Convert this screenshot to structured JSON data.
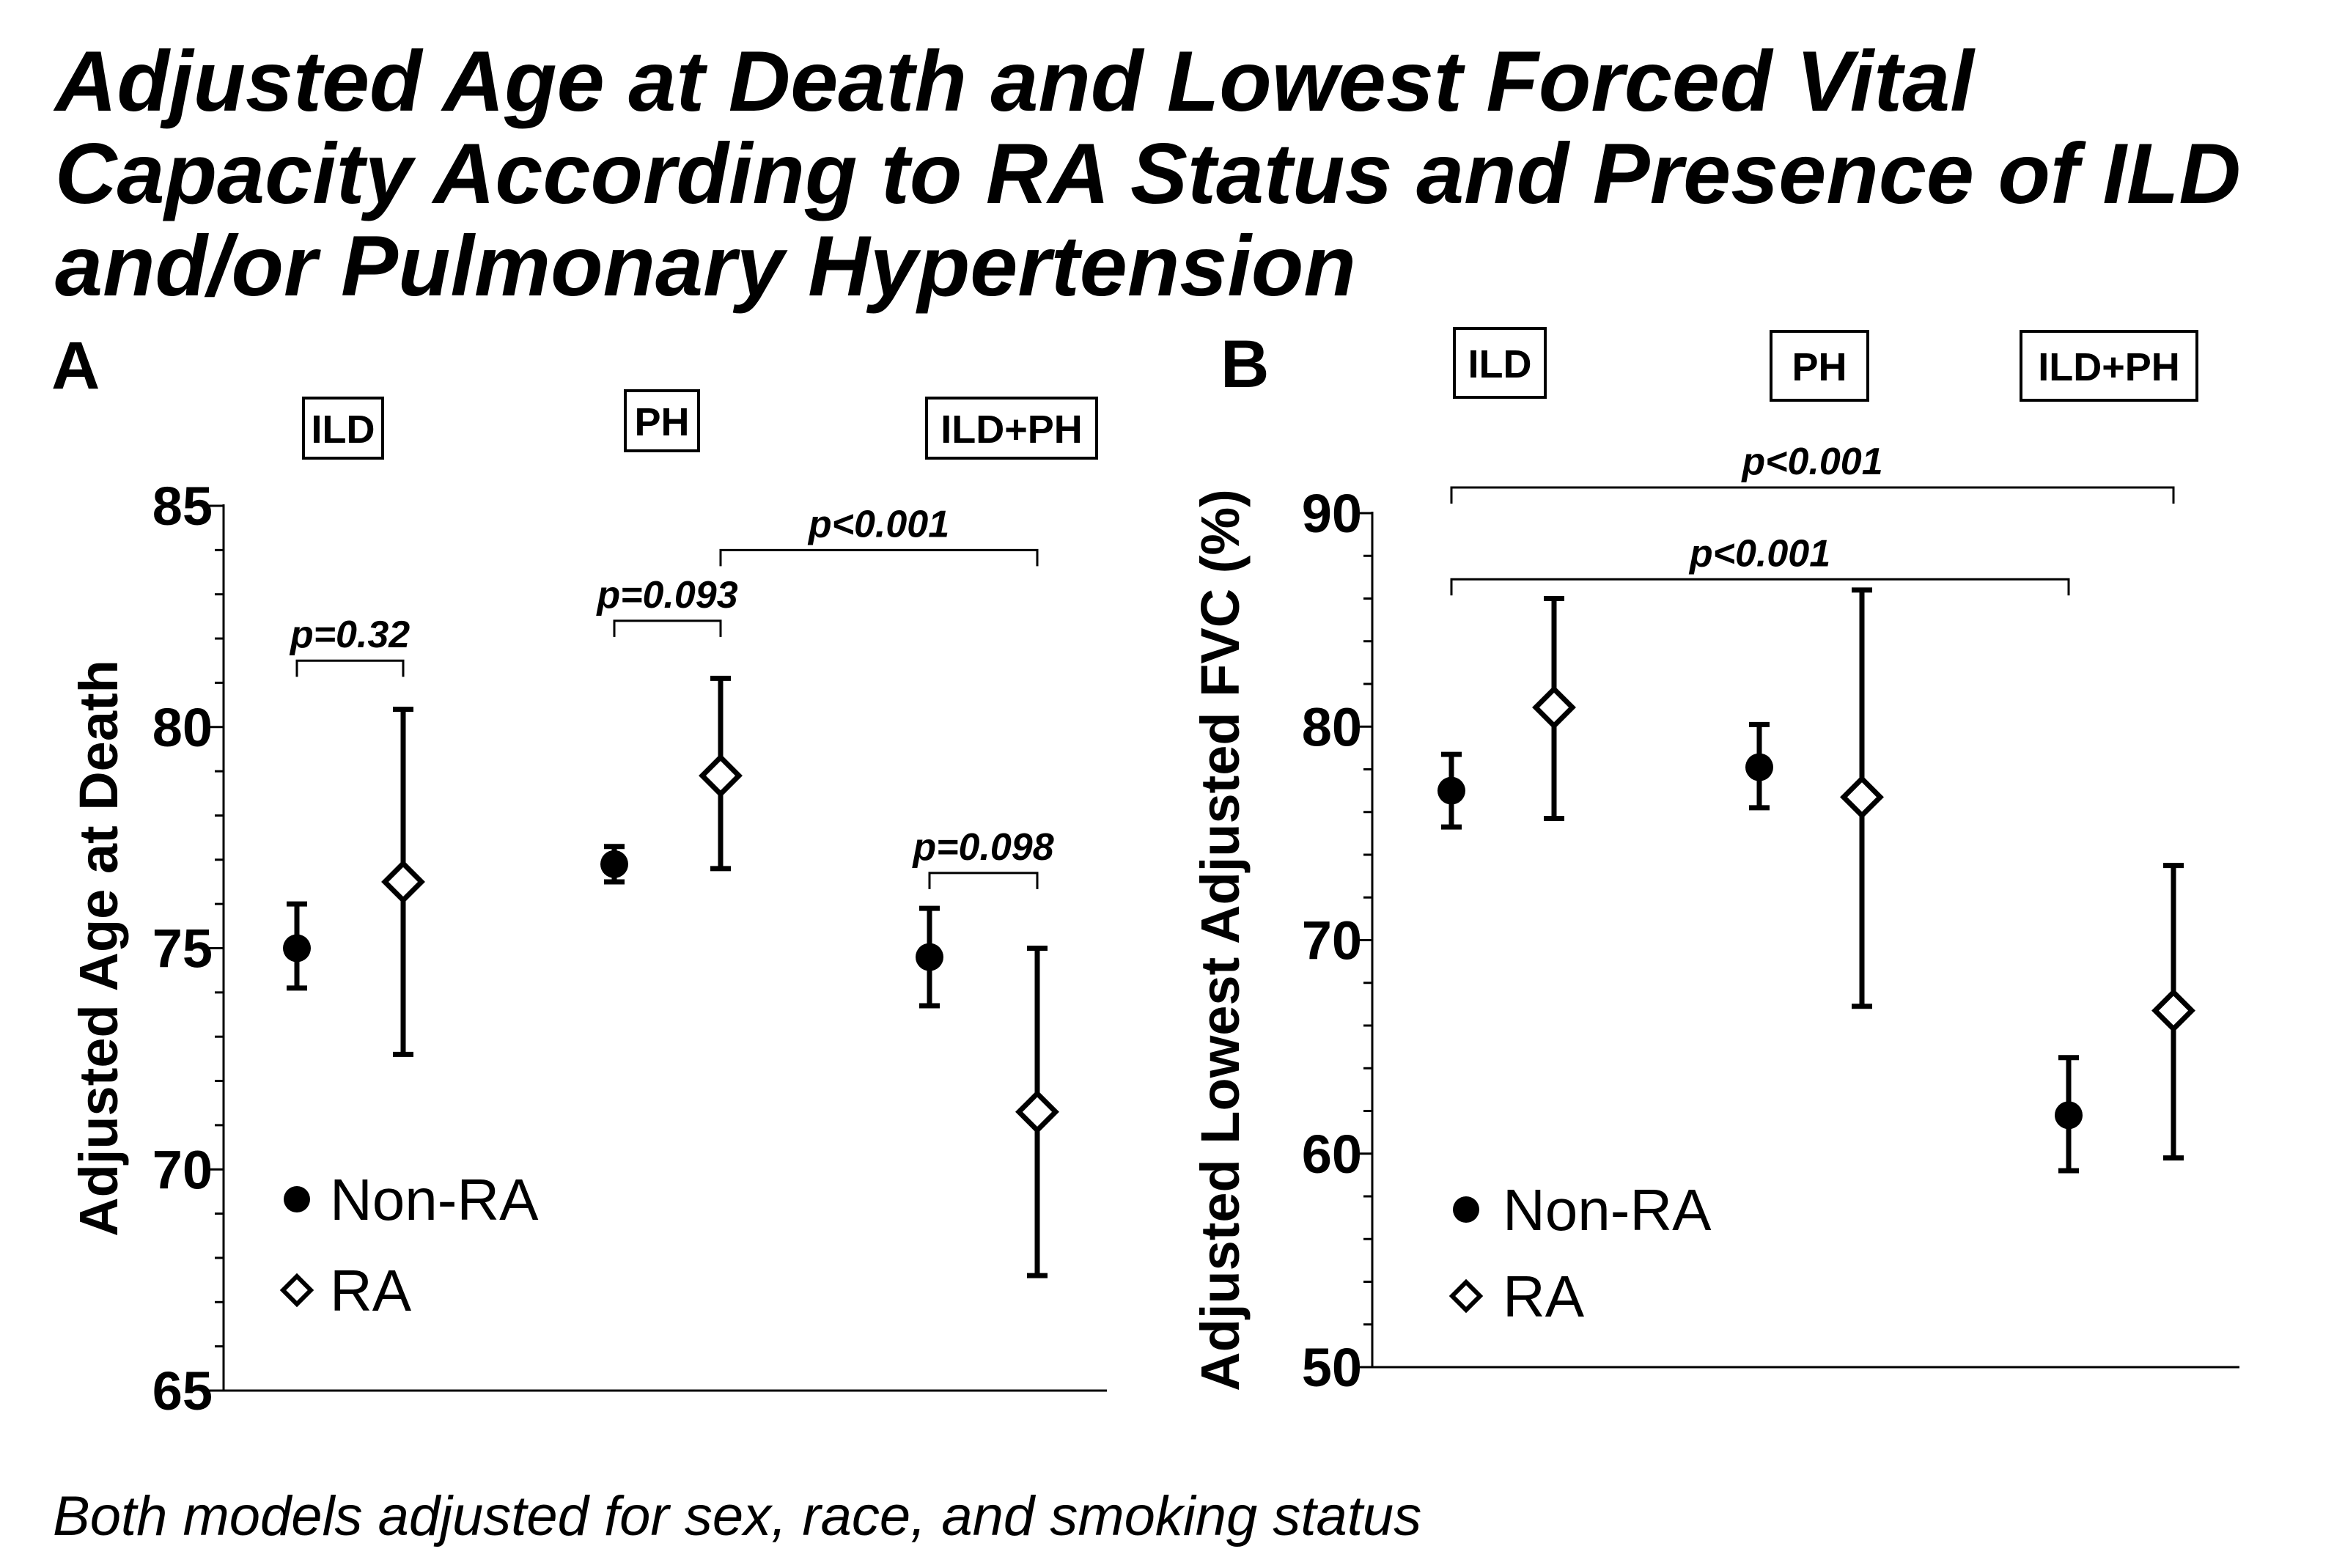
{
  "figure": {
    "title_lines": [
      "Adjusted Age at Death and Lowest Forced Vital",
      "Capacity According to RA Status and Presence of ILD",
      "and/or Pulmonary Hypertension"
    ],
    "footnote": "Both models adjusted for sex, race, and smoking status"
  },
  "chart_data": [
    {
      "type": "scatter",
      "panel_label": "A",
      "ylabel": "Adjusted Age at Death",
      "ylim": [
        65,
        85
      ],
      "yticks": [
        65,
        70,
        75,
        80,
        85
      ],
      "groups": [
        "ILD",
        "PH",
        "ILD+PH"
      ],
      "legend": {
        "placement": "bottom-left",
        "entries": [
          "Non-RA",
          "RA"
        ]
      },
      "series": [
        {
          "name": "Non-RA",
          "marker": "filled-circle",
          "values": [
            75.0,
            76.9,
            74.8
          ],
          "lower": [
            74.1,
            76.5,
            73.7
          ],
          "upper": [
            76.0,
            77.3,
            75.9
          ]
        },
        {
          "name": "RA",
          "marker": "open-diamond",
          "values": [
            76.5,
            78.9,
            71.3
          ],
          "lower": [
            72.6,
            76.8,
            67.6
          ],
          "upper": [
            80.4,
            81.1,
            75.0
          ]
        }
      ],
      "annotations": [
        {
          "text": "p=0.32",
          "from": [
            0,
            "Non-RA"
          ],
          "to": [
            0,
            "RA"
          ],
          "bracket_y": 81.5
        },
        {
          "text": "p=0.093",
          "from": [
            1,
            "Non-RA"
          ],
          "to": [
            1,
            "RA"
          ],
          "bracket_y": 82.4
        },
        {
          "text": "p<0.001",
          "from": [
            1,
            "RA"
          ],
          "to": [
            2,
            "RA"
          ],
          "bracket_y": 84.0
        },
        {
          "text": "p=0.098",
          "from": [
            2,
            "Non-RA"
          ],
          "to": [
            2,
            "RA"
          ],
          "bracket_y": 76.7
        }
      ]
    },
    {
      "type": "scatter",
      "panel_label": "B",
      "ylabel": "Adjusted Lowest Adjusted FVC (%)",
      "ylim": [
        50,
        90
      ],
      "yticks": [
        50,
        60,
        70,
        80,
        90
      ],
      "groups": [
        "ILD",
        "PH",
        "ILD+PH"
      ],
      "legend": {
        "placement": "bottom-left",
        "entries": [
          "Non-RA",
          "RA"
        ]
      },
      "series": [
        {
          "name": "Non-RA",
          "marker": "filled-circle",
          "values": [
            77.0,
            78.1,
            61.8
          ],
          "lower": [
            75.3,
            76.2,
            59.2
          ],
          "upper": [
            78.7,
            80.1,
            64.5
          ]
        },
        {
          "name": "RA",
          "marker": "open-diamond",
          "values": [
            80.9,
            76.7,
            66.7
          ],
          "lower": [
            75.7,
            66.9,
            59.8
          ],
          "upper": [
            86.0,
            86.4,
            73.5
          ]
        }
      ],
      "annotations": [
        {
          "text": "p<0.001",
          "from": [
            0,
            "Non-RA"
          ],
          "to": [
            2,
            "RA"
          ],
          "bracket_y": 91.2
        },
        {
          "text": "p<0.001",
          "from": [
            0,
            "Non-RA"
          ],
          "to": [
            2,
            "Non-RA"
          ],
          "bracket_y": 86.9
        }
      ]
    }
  ]
}
